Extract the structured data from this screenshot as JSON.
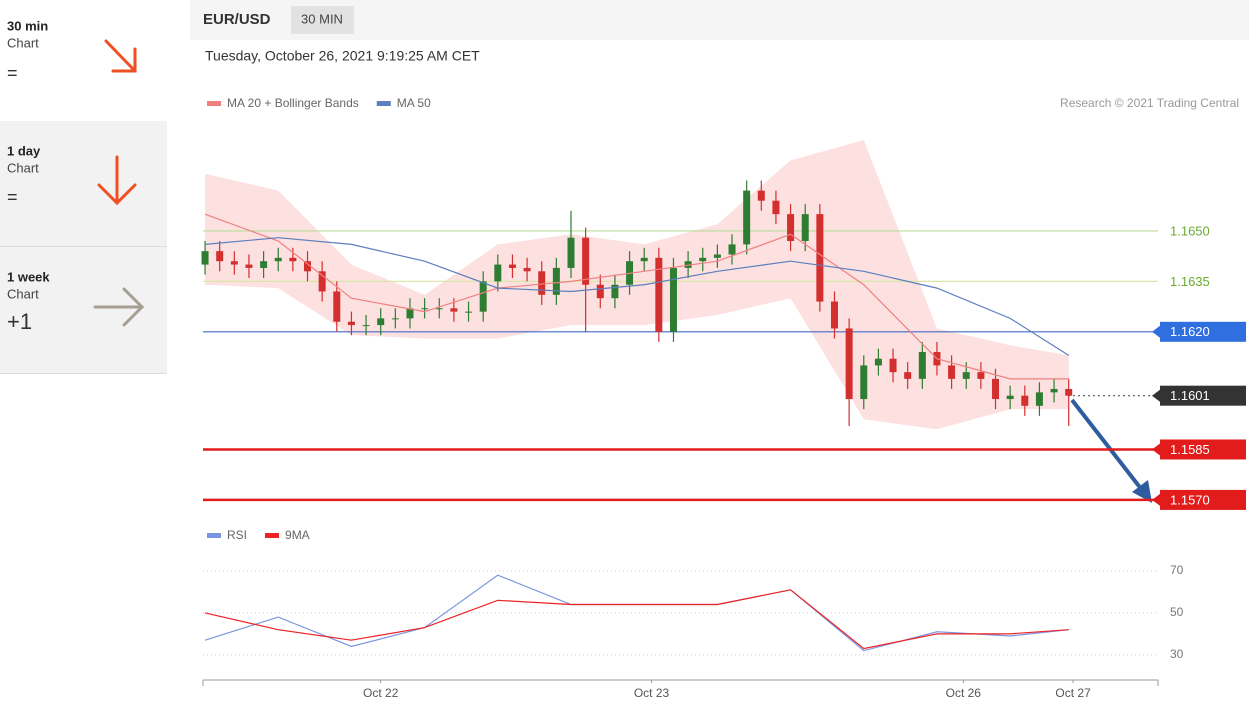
{
  "sidebar": [
    {
      "period": "30 min",
      "label": "Chart",
      "signal": "="
    },
    {
      "period": "1 day",
      "label": "Chart",
      "signal": "="
    },
    {
      "period": "1 week",
      "label": "Chart",
      "signal": "+1"
    }
  ],
  "header": {
    "symbol": "EUR/USD",
    "interval": "30 MIN",
    "timestamp": "Tuesday, October 26, 2021 9:19:25 AM CET"
  },
  "chart_data": [
    {
      "type": "candlestick",
      "copyright": "Research © 2021 Trading Central",
      "xlim": [
        -0.14,
        65.1
      ],
      "ylim": [
        1.1567,
        1.1683
      ],
      "up_color": "#2e7d32",
      "down_color": "#d32f2f",
      "open": [
        1.164,
        1.1644,
        1.1641,
        1.164,
        1.1639,
        1.1641,
        1.1642,
        1.1641,
        1.1638,
        1.1632,
        1.1623,
        1.1622,
        1.1622,
        1.1624,
        1.1624,
        1.1627,
        1.1627,
        1.1627,
        1.1626,
        1.1626,
        1.1635,
        1.164,
        1.1639,
        1.1638,
        1.1631,
        1.1639,
        1.1648,
        1.1634,
        1.163,
        1.1634,
        1.1641,
        1.1642,
        1.162,
        1.1639,
        1.1641,
        1.1642,
        1.1643,
        1.1646,
        1.1662,
        1.1659,
        1.1655,
        1.1647,
        1.1655,
        1.1629,
        1.1621,
        1.16,
        1.161,
        1.1612,
        1.1608,
        1.1606,
        1.1614,
        1.161,
        1.1606,
        1.1608,
        1.1606,
        1.16,
        1.1601,
        1.1598,
        1.1602,
        1.1603
      ],
      "high": [
        1.1647,
        1.1647,
        1.1644,
        1.1643,
        1.1644,
        1.1645,
        1.1645,
        1.1644,
        1.1641,
        1.1635,
        1.1626,
        1.1625,
        1.1627,
        1.1627,
        1.163,
        1.163,
        1.163,
        1.163,
        1.1629,
        1.1638,
        1.1643,
        1.1643,
        1.1642,
        1.1641,
        1.1642,
        1.1656,
        1.1651,
        1.1637,
        1.1637,
        1.1644,
        1.1645,
        1.1645,
        1.1642,
        1.1644,
        1.1645,
        1.1646,
        1.1649,
        1.1665,
        1.1665,
        1.1662,
        1.1658,
        1.1658,
        1.1658,
        1.1632,
        1.1624,
        1.1613,
        1.1615,
        1.1615,
        1.1611,
        1.1617,
        1.1617,
        1.1613,
        1.1611,
        1.1611,
        1.1609,
        1.1604,
        1.1604,
        1.1605,
        1.1606,
        1.1606
      ],
      "low": [
        1.1637,
        1.1638,
        1.1637,
        1.1636,
        1.1636,
        1.1638,
        1.1638,
        1.1635,
        1.1629,
        1.162,
        1.1619,
        1.1619,
        1.1619,
        1.1621,
        1.1621,
        1.1624,
        1.1624,
        1.1623,
        1.1623,
        1.1623,
        1.1632,
        1.1636,
        1.1635,
        1.1628,
        1.1628,
        1.1636,
        1.162,
        1.1627,
        1.1627,
        1.1631,
        1.1638,
        1.1617,
        1.1617,
        1.1636,
        1.1638,
        1.1639,
        1.164,
        1.1643,
        1.1656,
        1.1652,
        1.1644,
        1.1644,
        1.1626,
        1.1618,
        1.1592,
        1.1597,
        1.1607,
        1.1605,
        1.1603,
        1.1603,
        1.1607,
        1.1603,
        1.1603,
        1.1603,
        1.1597,
        1.1597,
        1.1595,
        1.1595,
        1.1599,
        1.1592
      ],
      "close": [
        1.1644,
        1.1641,
        1.164,
        1.1639,
        1.1641,
        1.1642,
        1.1641,
        1.1638,
        1.1632,
        1.1623,
        1.1622,
        1.1622,
        1.1624,
        1.1624,
        1.1627,
        1.1627,
        1.1627,
        1.1626,
        1.1626,
        1.1635,
        1.164,
        1.1639,
        1.1638,
        1.1631,
        1.1639,
        1.1648,
        1.1634,
        1.163,
        1.1634,
        1.1641,
        1.1642,
        1.162,
        1.1639,
        1.1641,
        1.1642,
        1.1643,
        1.1646,
        1.1662,
        1.1659,
        1.1655,
        1.1647,
        1.1655,
        1.1629,
        1.1621,
        1.16,
        1.161,
        1.1612,
        1.1608,
        1.1606,
        1.1614,
        1.161,
        1.1606,
        1.1608,
        1.1606,
        1.16,
        1.1601,
        1.1598,
        1.1602,
        1.1603,
        1.1601
      ],
      "series": [
        {
          "name": "MA 20 + Bollinger Bands",
          "color": "#f08080",
          "band_color": "#fde0e0",
          "x": [
            0,
            5,
            10,
            15,
            20,
            25,
            30,
            35,
            40,
            45,
            50,
            55,
            59
          ],
          "values": [
            1.1655,
            1.1647,
            1.163,
            1.1626,
            1.1633,
            1.1635,
            1.1638,
            1.1641,
            1.1649,
            1.1634,
            1.1612,
            1.1606,
            1.1606
          ],
          "upper": [
            1.1667,
            1.1662,
            1.164,
            1.1631,
            1.1646,
            1.1649,
            1.1646,
            1.1652,
            1.1671,
            1.1677,
            1.1621,
            1.1616,
            1.1613
          ],
          "lower": [
            1.1634,
            1.1633,
            1.1619,
            1.1618,
            1.1618,
            1.1622,
            1.1622,
            1.1625,
            1.163,
            1.1594,
            1.1591,
            1.1597,
            1.1597
          ]
        },
        {
          "name": "MA 50",
          "color": "#5b7fbf",
          "x": [
            0,
            5,
            10,
            15,
            20,
            25,
            30,
            35,
            40,
            45,
            50,
            55,
            59
          ],
          "values": [
            1.1646,
            1.1648,
            1.1646,
            1.1641,
            1.1633,
            1.1632,
            1.1634,
            1.1638,
            1.1641,
            1.1638,
            1.1633,
            1.1624,
            1.1613
          ]
        }
      ],
      "levels": [
        {
          "value": {
            "value": 1.165,
            "label": "1.1650"
          },
          "color": "#b9dc9a",
          "text_color": "#6aab2e",
          "style": "solid",
          "box": false
        },
        {
          "value": {
            "value": 1.1635,
            "label": "1.1635"
          },
          "color": "#dbe5a8",
          "text_color": "#6aab2e",
          "style": "solid",
          "box": false
        },
        {
          "value": {
            "value": 1.162,
            "label": "1.1620"
          },
          "color": "#4169c9",
          "text_color": "#ffffff",
          "box_color": "#2f6fe0",
          "style": "solid",
          "box": true
        },
        {
          "value": {
            "value": 1.1601,
            "label": "1.1601"
          },
          "color": "#555555",
          "text_color": "#ffffff",
          "box_color": "#333333",
          "style": "dotted",
          "box": true
        },
        {
          "value": {
            "value": 1.1585,
            "label": "1.1585"
          },
          "color": "#e21b1b",
          "text_color": "#ffffff",
          "box_color": "#e21b1b",
          "style": "thick",
          "box": true
        },
        {
          "value": {
            "value": 1.157,
            "label": "1.1570"
          },
          "color": "#e21b1b",
          "text_color": "#ffffff",
          "box_color": "#e21b1b",
          "style": "thick",
          "box": true
        }
      ]
    },
    {
      "type": "line",
      "xlim": [
        -0.14,
        65.1
      ],
      "ylim": [
        18,
        80
      ],
      "yticks": [
        70,
        50,
        30
      ],
      "xticks": [
        {
          "value": 12.0,
          "label": "Oct 22"
        },
        {
          "value": 30.5,
          "label": "Oct 23"
        },
        {
          "value": 51.8,
          "label": "Oct 26"
        },
        {
          "value": 59.3,
          "label": "Oct 27"
        }
      ],
      "series": [
        {
          "name": "RSI",
          "color": "#7b96e0",
          "x": [
            0,
            5,
            10,
            15,
            20,
            25,
            30,
            35,
            40,
            45,
            50,
            55,
            59
          ],
          "values": [
            37,
            48,
            34,
            43,
            68,
            54,
            54,
            54,
            61,
            32,
            41,
            39,
            42
          ]
        },
        {
          "name": "9MA",
          "color": "#ee2222",
          "x": [
            0,
            5,
            10,
            15,
            20,
            25,
            30,
            35,
            40,
            45,
            50,
            55,
            59
          ],
          "values": [
            50,
            42,
            37,
            43,
            56,
            54,
            54,
            54,
            61,
            33,
            40,
            40,
            42
          ]
        }
      ]
    }
  ]
}
